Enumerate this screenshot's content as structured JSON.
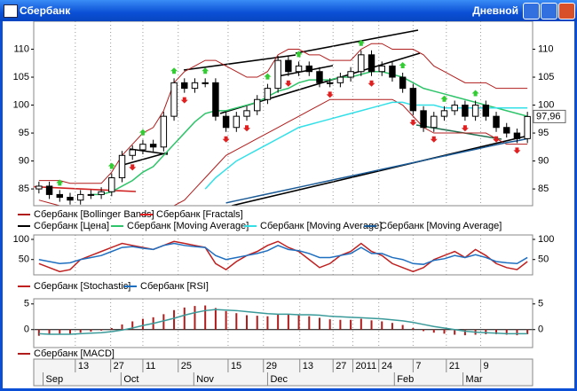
{
  "window": {
    "title": "Сбербанк",
    "mode": "Дневной"
  },
  "chart_data": [
    {
      "type": "candlestick",
      "xlim": [
        0,
        48
      ],
      "ylim": [
        82,
        115
      ],
      "yticks": [
        85,
        90,
        95,
        100,
        105,
        110
      ],
      "grid": true,
      "last_price": {
        "value": 97.96,
        "label": "97,96"
      },
      "series": [
        {
          "name": "Сбербанк [Bollinger Bands]",
          "color": "#b01c1c",
          "upper": [
            86.5,
            86.5,
            86.5,
            86,
            86,
            86,
            86,
            88,
            91,
            93,
            95,
            96,
            99,
            104,
            106,
            107,
            108,
            108,
            107,
            106,
            105,
            105,
            106,
            109,
            110,
            110,
            109,
            109,
            108,
            108,
            108,
            110,
            111,
            111,
            110,
            110,
            110,
            109,
            107,
            106,
            105,
            104,
            104,
            104,
            103,
            103,
            103,
            103
          ],
          "lower": [
            83,
            82.5,
            82,
            81.5,
            81.5,
            82,
            82,
            82,
            82,
            82,
            82,
            82,
            82,
            82,
            83,
            85,
            87,
            89,
            91,
            92,
            93,
            94,
            95,
            96,
            97,
            98,
            99,
            100,
            101,
            101,
            101,
            101,
            101,
            101,
            101,
            100,
            98,
            96,
            95,
            95,
            95,
            95,
            95,
            95,
            94,
            93,
            93,
            93
          ]
        },
        {
          "name": "Сбербанк [Fractals]",
          "color": "#e02020",
          "up_color": "#33cc33",
          "up": [
            null,
            null,
            84.8,
            null,
            null,
            null,
            null,
            87.8,
            null,
            null,
            93.8,
            null,
            null,
            104.8,
            null,
            null,
            104.8,
            null,
            null,
            null,
            null,
            null,
            103.8,
            null,
            null,
            107.8,
            null,
            null,
            null,
            null,
            null,
            109.8,
            null,
            null,
            null,
            105.8,
            null,
            null,
            null,
            99.8,
            null,
            null,
            100.8,
            null,
            null,
            null,
            null,
            null
          ],
          "down": [
            null,
            null,
            null,
            null,
            null,
            null,
            null,
            null,
            null,
            90.2,
            null,
            null,
            null,
            null,
            102.2,
            null,
            null,
            null,
            95.2,
            null,
            97.2,
            null,
            null,
            null,
            105.2,
            null,
            null,
            null,
            103.2,
            null,
            null,
            null,
            105.2,
            null,
            null,
            null,
            98.2,
            null,
            95.2,
            null,
            null,
            97.2,
            null,
            null,
            95.2,
            null,
            93.2,
            null
          ]
        },
        {
          "name": "Сбербанк [Цена]",
          "color": "#000000",
          "open": [
            85,
            85.5,
            84,
            83.5,
            83,
            84,
            84,
            84.5,
            87,
            91,
            92,
            93,
            92.5,
            98,
            104,
            103,
            104,
            104,
            98,
            96,
            98,
            99,
            101,
            103,
            108,
            106,
            107,
            106,
            104,
            104,
            105,
            106,
            109,
            106,
            107,
            105,
            103,
            99,
            96,
            98,
            99,
            100,
            98,
            100,
            98,
            96,
            95,
            94
          ],
          "high": [
            86.3,
            86.3,
            84.8,
            84.3,
            84.8,
            84.8,
            85.3,
            87.8,
            91.8,
            92.8,
            93.8,
            93.8,
            98.8,
            104.8,
            104.8,
            104.8,
            104.8,
            104.8,
            98.8,
            98.8,
            99.8,
            101.8,
            103.8,
            108.8,
            108.8,
            107.8,
            107.8,
            106.8,
            104.8,
            105.8,
            106.8,
            109.8,
            109.8,
            107.8,
            107.8,
            105.8,
            103.8,
            99.8,
            98.8,
            99.8,
            100.8,
            100.8,
            100.8,
            100.8,
            98.8,
            96.8,
            95.8,
            98.8
          ],
          "low": [
            84.2,
            83.2,
            82.7,
            82.2,
            82.2,
            83.2,
            83.2,
            83.7,
            86.2,
            90.2,
            91.2,
            91.7,
            91.7,
            97.2,
            102.2,
            102.2,
            103.2,
            97.2,
            95.2,
            95.2,
            97.2,
            98.2,
            100.2,
            102.2,
            105.2,
            105.2,
            105.2,
            103.2,
            103.2,
            103.2,
            104.2,
            105.2,
            105.2,
            105.2,
            104.2,
            102.2,
            98.2,
            95.2,
            95.2,
            97.2,
            98.2,
            97.2,
            97.2,
            97.2,
            95.2,
            94.2,
            93.2,
            93.2
          ],
          "close": [
            85.5,
            84,
            83.5,
            83,
            84,
            84,
            84.5,
            87,
            91,
            92,
            93,
            92.5,
            98,
            104,
            103,
            104,
            104,
            98,
            96,
            98,
            99,
            101,
            103,
            108,
            106,
            107,
            106,
            104,
            104,
            105,
            106,
            109,
            106,
            107,
            105,
            103,
            99,
            96,
            98,
            99,
            100,
            98,
            100,
            98,
            96,
            95,
            94,
            97.96
          ]
        },
        {
          "name": "Сбербанк [Moving Average]",
          "color": "#2ec46a",
          "values": [
            null,
            null,
            null,
            null,
            null,
            84,
            84,
            84.5,
            85.5,
            86.5,
            88,
            89,
            91,
            93,
            95,
            97,
            98.5,
            99,
            99,
            99.5,
            100,
            100.5,
            101.5,
            102.5,
            103,
            104,
            104.5,
            104.5,
            104.5,
            105,
            105,
            105.5,
            106,
            106,
            105.5,
            105,
            104,
            103,
            102.5,
            102,
            101.5,
            101,
            100.5,
            100,
            99.5,
            99,
            98.5,
            98
          ]
        },
        {
          "name": "Сбербанк [Moving Average]",
          "color": "#33e0e8",
          "values": [
            null,
            null,
            null,
            null,
            null,
            null,
            null,
            null,
            null,
            null,
            null,
            null,
            null,
            null,
            null,
            null,
            85,
            87,
            88.5,
            90,
            91,
            92,
            93,
            94,
            95,
            96,
            96.5,
            97,
            97.5,
            98,
            98.5,
            99,
            99.5,
            100,
            100.5,
            100.5,
            100,
            100,
            100,
            99.5,
            99.5,
            99.5,
            99.5,
            99.5,
            99.5,
            99.5,
            99.5,
            99.5
          ]
        },
        {
          "name": "Сбербанк [Moving Average]",
          "color": "#1a5a96",
          "values": [
            null,
            null,
            null,
            null,
            null,
            null,
            null,
            null,
            null,
            null,
            null,
            null,
            null,
            null,
            null,
            null,
            null,
            null,
            82.5,
            82.9,
            83.3,
            83.7,
            84.1,
            84.5,
            84.9,
            85.3,
            85.7,
            86.1,
            86.5,
            86.9,
            87.3,
            87.7,
            88.1,
            88.5,
            88.9,
            89.3,
            89.7,
            90.1,
            90.5,
            90.9,
            91.3,
            91.7,
            92.1,
            92.5,
            92.9,
            93.3,
            93.6,
            94
          ]
        }
      ]
    },
    {
      "type": "line",
      "xlim": [
        0,
        48
      ],
      "ylim": [
        12,
        111
      ],
      "yticks": [
        50,
        100
      ],
      "series": [
        {
          "name": "Сбербанк [Stochastic]",
          "color": "#c02020",
          "values": [
            40,
            30,
            20,
            25,
            50,
            60,
            70,
            80,
            90,
            85,
            80,
            75,
            85,
            95,
            90,
            85,
            80,
            40,
            25,
            45,
            60,
            70,
            85,
            95,
            80,
            70,
            50,
            30,
            40,
            60,
            70,
            90,
            70,
            60,
            40,
            30,
            20,
            30,
            50,
            60,
            70,
            55,
            75,
            60,
            40,
            30,
            25,
            45
          ]
        },
        {
          "name": "Сбербанк [RSI]",
          "color": "#1f6fc0",
          "values": [
            50,
            45,
            40,
            42,
            50,
            55,
            60,
            70,
            80,
            82,
            78,
            75,
            85,
            90,
            85,
            82,
            80,
            60,
            50,
            55,
            60,
            65,
            72,
            85,
            75,
            72,
            65,
            55,
            55,
            60,
            65,
            80,
            65,
            65,
            55,
            50,
            40,
            38,
            48,
            52,
            60,
            55,
            62,
            55,
            45,
            42,
            40,
            55
          ]
        }
      ]
    },
    {
      "type": "macd",
      "xlim": [
        0,
        48
      ],
      "ylim": [
        -3.5,
        6
      ],
      "yticks": [
        0,
        5
      ],
      "xticks": [
        {
          "value": 4,
          "label": "13"
        },
        {
          "value": 7.4,
          "label": "27"
        },
        {
          "value": 10.5,
          "label": "11"
        },
        {
          "value": 13.9,
          "label": "25"
        },
        {
          "value": 18.7,
          "label": "15"
        },
        {
          "value": 22.1,
          "label": "29"
        },
        {
          "value": 25.6,
          "label": "13"
        },
        {
          "value": 28.8,
          "label": "27"
        },
        {
          "value": 30.7,
          "label": "2011"
        },
        {
          "value": 33.2,
          "label": "24"
        },
        {
          "value": 36.5,
          "label": "7"
        },
        {
          "value": 39.7,
          "label": "21"
        },
        {
          "value": 43,
          "label": "9"
        }
      ],
      "month_ticks": [
        {
          "value": 0.9,
          "label": "Sep"
        },
        {
          "value": 8.4,
          "label": "Oct"
        },
        {
          "value": 15.4,
          "label": "Nov"
        },
        {
          "value": 22.5,
          "label": "Dec"
        },
        {
          "value": 34.7,
          "label": "Feb"
        },
        {
          "value": 41.3,
          "label": "Mar"
        }
      ],
      "series": [
        {
          "name": "Сбербанк [MACD]",
          "color": "#b01c1c",
          "signal_color": "#3a9a9a",
          "values": [
            -1.2,
            -1,
            -0.8,
            -0.8,
            -0.6,
            -0.4,
            -0.2,
            0.3,
            1,
            1.6,
            2.1,
            2.4,
            3,
            3.8,
            4.3,
            4.6,
            4.7,
            4.2,
            3.6,
            3.2,
            2.8,
            2.7,
            2.6,
            2.9,
            2.9,
            2.8,
            2.6,
            2.3,
            2,
            1.9,
            1.9,
            2.1,
            1.8,
            1.6,
            1.3,
            0.9,
            0.3,
            -0.3,
            -0.6,
            -0.8,
            -1,
            -1.1,
            -1,
            -0.9,
            -0.9,
            -1,
            -1.1,
            -0.9
          ],
          "signal": [
            -0.8,
            -0.9,
            -0.9,
            -0.9,
            -0.8,
            -0.7,
            -0.6,
            -0.4,
            -0.1,
            0.3,
            0.8,
            1.2,
            1.7,
            2.2,
            2.8,
            3.3,
            3.7,
            3.9,
            3.8,
            3.7,
            3.5,
            3.3,
            3.1,
            3,
            3,
            2.9,
            2.9,
            2.8,
            2.6,
            2.5,
            2.4,
            2.3,
            2.2,
            2.1,
            1.9,
            1.7,
            1.4,
            1,
            0.6,
            0.3,
            0,
            -0.3,
            -0.5,
            -0.6,
            -0.7,
            -0.8,
            -0.8,
            -0.8
          ]
        }
      ]
    }
  ]
}
